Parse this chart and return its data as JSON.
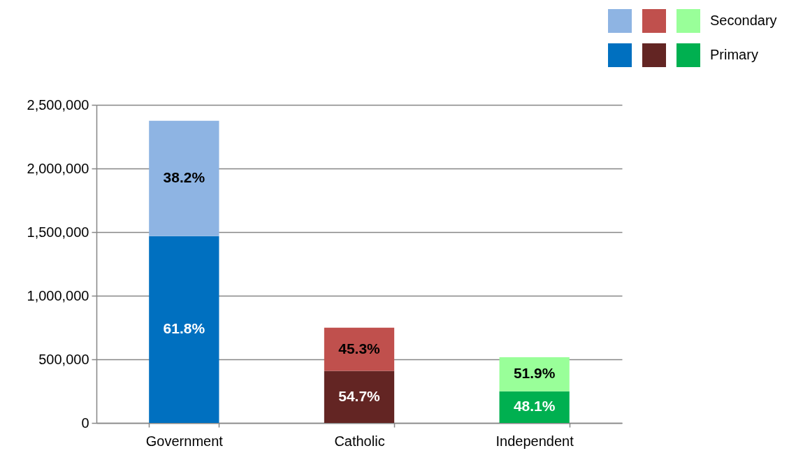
{
  "chart_data": {
    "type": "bar",
    "stacked": true,
    "categories": [
      "Government",
      "Catholic",
      "Independent"
    ],
    "series": [
      {
        "name": "Primary",
        "colors": [
          "#0070c0",
          "#632523",
          "#00b050"
        ],
        "values": [
          1468000,
          409000,
          248000
        ]
      },
      {
        "name": "Secondary",
        "colors": [
          "#8eb4e3",
          "#c0504d",
          "#99ff99"
        ],
        "values": [
          907000,
          339000,
          268000
        ]
      }
    ],
    "annotations": [
      "61.8%",
      "54.7%",
      "48.1%",
      "38.2%",
      "45.3%",
      "51.9%"
    ],
    "ylim": [
      0,
      2500000
    ],
    "yticks": [
      0,
      {
        "value": 500000,
        "label": "500,000"
      },
      {
        "value": 1000000,
        "label": "1,000,000"
      },
      {
        "value": 1500000,
        "label": "1,500,000"
      },
      {
        "value": 2000000,
        "label": "2,000,000"
      },
      {
        "value": 2500000,
        "label": "2,500,000"
      }
    ],
    "grid": "y",
    "legend": "top right"
  }
}
